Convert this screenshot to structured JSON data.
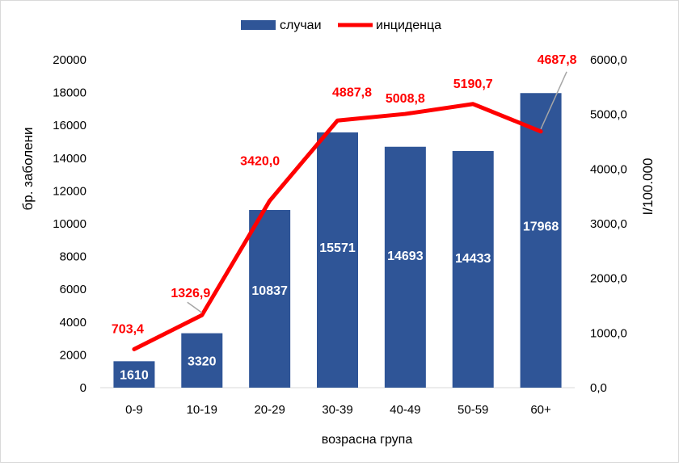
{
  "chart_data": {
    "type": "bar",
    "categories": [
      "0-9",
      "10-19",
      "20-29",
      "30-39",
      "40-49",
      "50-59",
      "60+"
    ],
    "series": [
      {
        "name": "случаи",
        "type": "bar",
        "axis": "left",
        "values": [
          1610,
          3320,
          10837,
          15571,
          14693,
          14433,
          17968
        ],
        "labels": [
          "1610",
          "3320",
          "10837",
          "15571",
          "14693",
          "14433",
          "17968"
        ],
        "color": "#2F5597"
      },
      {
        "name": "инциденца",
        "type": "line",
        "axis": "right",
        "values": [
          703.4,
          1326.9,
          3420.0,
          4887.8,
          5008.8,
          5190.7,
          4687.8
        ],
        "labels": [
          "703,4",
          "1326,9",
          "3420,0",
          "4887,8",
          "5008,8",
          "5190,7",
          "4687,8"
        ],
        "color": "#FF0000"
      }
    ],
    "xlabel": "возрасна група",
    "ylabel": "бр. заболени",
    "y2label": "I/100.000",
    "ylim": [
      0,
      20000
    ],
    "y2lim": [
      0,
      6000
    ],
    "yticks": [
      "0",
      "2000",
      "4000",
      "6000",
      "8000",
      "10000",
      "12000",
      "14000",
      "16000",
      "18000",
      "20000"
    ],
    "y2ticks": [
      "0,0",
      "1000,0",
      "2000,0",
      "3000,0",
      "4000,0",
      "5000,0",
      "6000,0"
    ],
    "legend_position": "top",
    "grid": false
  }
}
